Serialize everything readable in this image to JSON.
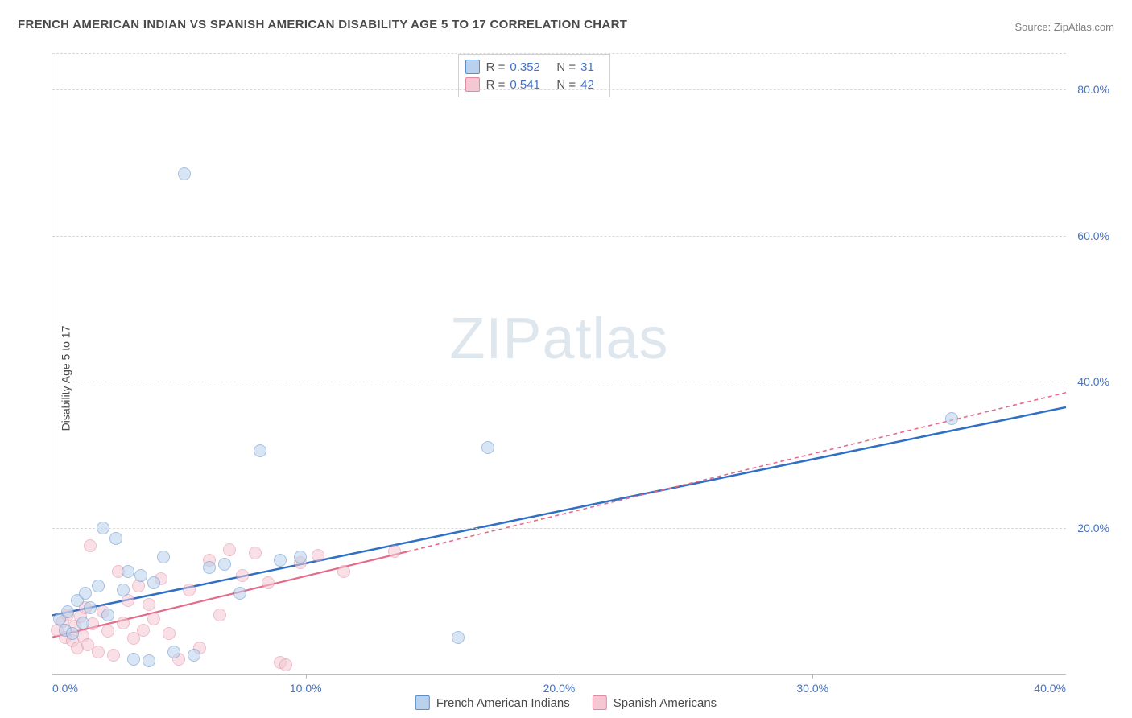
{
  "title": "FRENCH AMERICAN INDIAN VS SPANISH AMERICAN DISABILITY AGE 5 TO 17 CORRELATION CHART",
  "source_label": "Source: ",
  "source_name": "ZipAtlas.com",
  "ylabel": "Disability Age 5 to 17",
  "watermark_bold": "ZIP",
  "watermark_light": "atlas",
  "chart": {
    "type": "scatter",
    "background_color": "#ffffff",
    "grid_color": "#d9d9d9",
    "axis_color": "#bdbdbd",
    "tick_label_color": "#4472c4",
    "tick_fontsize": 14,
    "xlim": [
      0,
      40
    ],
    "ylim": [
      0,
      85
    ],
    "xtick_step": 10,
    "xtick_labels": [
      "0.0%",
      "10.0%",
      "20.0%",
      "30.0%",
      "40.0%"
    ],
    "ytick_values": [
      20,
      40,
      60,
      80
    ],
    "ytick_labels": [
      "20.0%",
      "40.0%",
      "60.0%",
      "80.0%"
    ],
    "marker_radius": 8,
    "marker_opacity": 0.55,
    "series": [
      {
        "name": "French American Indians",
        "fill": "#b9d1ec",
        "stroke": "#5b8fc7",
        "trend_color": "#2f6fc5",
        "trend_width": 2.5,
        "trend_dash": "none",
        "trend_x": [
          0,
          40
        ],
        "trend_y": [
          8.0,
          36.5
        ],
        "points": [
          [
            0.3,
            7.5
          ],
          [
            0.5,
            6.0
          ],
          [
            0.6,
            8.5
          ],
          [
            0.8,
            5.5
          ],
          [
            1.0,
            10.0
          ],
          [
            1.2,
            7.0
          ],
          [
            1.3,
            11.0
          ],
          [
            1.5,
            9.0
          ],
          [
            1.8,
            12.0
          ],
          [
            2.0,
            20.0
          ],
          [
            2.2,
            8.0
          ],
          [
            2.5,
            18.5
          ],
          [
            2.8,
            11.5
          ],
          [
            3.0,
            14.0
          ],
          [
            3.2,
            2.0
          ],
          [
            3.5,
            13.5
          ],
          [
            3.8,
            1.8
          ],
          [
            4.0,
            12.5
          ],
          [
            4.4,
            16.0
          ],
          [
            4.8,
            3.0
          ],
          [
            5.2,
            68.5
          ],
          [
            5.6,
            2.5
          ],
          [
            6.2,
            14.5
          ],
          [
            6.8,
            15.0
          ],
          [
            7.4,
            11.0
          ],
          [
            8.2,
            30.5
          ],
          [
            9.0,
            15.5
          ],
          [
            9.8,
            16.0
          ],
          [
            16.0,
            5.0
          ],
          [
            17.2,
            31.0
          ],
          [
            35.5,
            35.0
          ]
        ]
      },
      {
        "name": "Spanish Americans",
        "fill": "#f3c8d3",
        "stroke": "#e28aa0",
        "trend_color": "#e46b89",
        "trend_width": 2.2,
        "trend_dash": "5,4",
        "trend_x": [
          0,
          40
        ],
        "trend_y": [
          5.0,
          38.5
        ],
        "solid_until_x": 14,
        "points": [
          [
            0.2,
            6.0
          ],
          [
            0.4,
            7.2
          ],
          [
            0.5,
            5.0
          ],
          [
            0.6,
            8.0
          ],
          [
            0.8,
            4.5
          ],
          [
            0.9,
            6.5
          ],
          [
            1.0,
            3.5
          ],
          [
            1.1,
            7.8
          ],
          [
            1.2,
            5.2
          ],
          [
            1.3,
            9.0
          ],
          [
            1.4,
            4.0
          ],
          [
            1.5,
            17.5
          ],
          [
            1.6,
            6.8
          ],
          [
            1.8,
            3.0
          ],
          [
            2.0,
            8.5
          ],
          [
            2.2,
            5.8
          ],
          [
            2.4,
            2.5
          ],
          [
            2.6,
            14.0
          ],
          [
            2.8,
            7.0
          ],
          [
            3.0,
            10.0
          ],
          [
            3.2,
            4.8
          ],
          [
            3.4,
            12.0
          ],
          [
            3.6,
            6.0
          ],
          [
            3.8,
            9.5
          ],
          [
            4.0,
            7.5
          ],
          [
            4.3,
            13.0
          ],
          [
            4.6,
            5.5
          ],
          [
            5.0,
            2.0
          ],
          [
            5.4,
            11.5
          ],
          [
            5.8,
            3.5
          ],
          [
            6.2,
            15.5
          ],
          [
            6.6,
            8.0
          ],
          [
            7.0,
            17.0
          ],
          [
            7.5,
            13.5
          ],
          [
            8.0,
            16.5
          ],
          [
            8.5,
            12.5
          ],
          [
            9.0,
            1.5
          ],
          [
            9.2,
            1.2
          ],
          [
            9.8,
            15.2
          ],
          [
            10.5,
            16.2
          ],
          [
            11.5,
            14.0
          ],
          [
            13.5,
            16.8
          ]
        ]
      }
    ]
  },
  "stats": [
    {
      "swatch_fill": "#b9d1ec",
      "swatch_stroke": "#5b8fc7",
      "r_label": "R =",
      "r": "0.352",
      "n_label": "N =",
      "n": "31"
    },
    {
      "swatch_fill": "#f3c8d3",
      "swatch_stroke": "#e28aa0",
      "r_label": "R =",
      "r": "0.541",
      "n_label": "N =",
      "n": "42"
    }
  ],
  "legend": [
    {
      "swatch_fill": "#b9d1ec",
      "swatch_stroke": "#5b8fc7",
      "label": "French American Indians"
    },
    {
      "swatch_fill": "#f3c8d3",
      "swatch_stroke": "#e28aa0",
      "label": "Spanish Americans"
    }
  ]
}
